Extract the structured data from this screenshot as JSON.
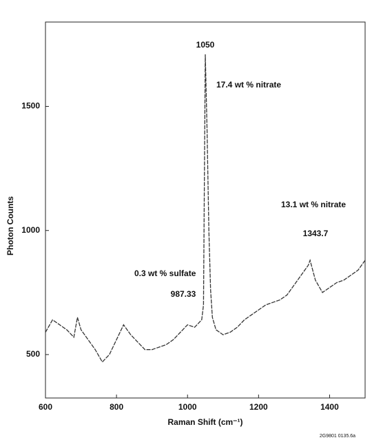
{
  "chart_data": {
    "type": "line",
    "xlabel": "Raman Shift (cm⁻¹)",
    "ylabel": "Photon Counts",
    "x": [
      600,
      620,
      640,
      660,
      680,
      690,
      700,
      720,
      740,
      760,
      780,
      800,
      820,
      840,
      860,
      880,
      900,
      920,
      940,
      960,
      980,
      1000,
      1020,
      1040,
      1045,
      1050,
      1055,
      1060,
      1065,
      1070,
      1080,
      1100,
      1120,
      1140,
      1160,
      1180,
      1200,
      1220,
      1240,
      1260,
      1280,
      1300,
      1320,
      1340,
      1345,
      1360,
      1380,
      1400,
      1420,
      1440,
      1460,
      1480,
      1500
    ],
    "values": [
      590,
      640,
      620,
      600,
      570,
      650,
      600,
      560,
      520,
      470,
      500,
      560,
      620,
      580,
      550,
      520,
      520,
      530,
      540,
      560,
      590,
      620,
      610,
      640,
      700,
      1710,
      1400,
      1000,
      760,
      650,
      600,
      580,
      590,
      610,
      640,
      660,
      680,
      700,
      710,
      720,
      740,
      780,
      820,
      860,
      880,
      800,
      750,
      770,
      790,
      800,
      820,
      840,
      880
    ],
    "color": "#333333",
    "xlim": [
      600,
      1500
    ],
    "xticks": [
      600,
      800,
      1000,
      1200,
      1400
    ],
    "ylim": [
      325,
      1840
    ],
    "yticks": [
      500,
      1000,
      1500
    ],
    "annotations": [
      "1050",
      "17.4 wt % nitrate",
      "13.1 wt % nitrate",
      "1343.7",
      "0.3 wt % sulfate",
      "987.33"
    ],
    "footnote": "2G9801 0135.6a"
  }
}
